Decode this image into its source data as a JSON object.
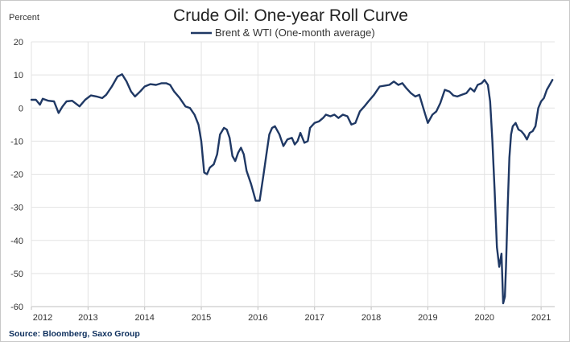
{
  "chart_data": {
    "type": "line",
    "title": "Crude Oil: One-year Roll Curve",
    "ylabel": "Percent",
    "xlabel": "",
    "ylim": [
      -60,
      20
    ],
    "yticks": [
      20,
      10,
      0,
      -10,
      -20,
      -30,
      -40,
      -50,
      -60
    ],
    "xticks": [
      "2012",
      "2013",
      "2014",
      "2015",
      "2016",
      "2017",
      "2018",
      "2019",
      "2020",
      "2021"
    ],
    "grid": true,
    "legend": "top-center",
    "source": "Source: Bloomberg, Saxo Group",
    "series": [
      {
        "name": "Brent & WTI (One-month average)",
        "color": "#1f3864",
        "x": [
          2012.0,
          2012.08,
          2012.15,
          2012.2,
          2012.3,
          2012.4,
          2012.48,
          2012.55,
          2012.62,
          2012.72,
          2012.85,
          2012.95,
          2013.05,
          2013.15,
          2013.25,
          2013.32,
          2013.42,
          2013.52,
          2013.6,
          2013.68,
          2013.76,
          2013.83,
          2013.92,
          2014.0,
          2014.1,
          2014.2,
          2014.3,
          2014.38,
          2014.45,
          2014.52,
          2014.62,
          2014.72,
          2014.8,
          2014.88,
          2014.95,
          2015.0,
          2015.05,
          2015.1,
          2015.15,
          2015.22,
          2015.28,
          2015.33,
          2015.4,
          2015.45,
          2015.5,
          2015.55,
          2015.6,
          2015.65,
          2015.7,
          2015.75,
          2015.8,
          2015.88,
          2015.96,
          2016.03,
          2016.1,
          2016.15,
          2016.2,
          2016.25,
          2016.3,
          2016.38,
          2016.45,
          2016.52,
          2016.6,
          2016.65,
          2016.7,
          2016.75,
          2016.82,
          2016.88,
          2016.92,
          2017.0,
          2017.08,
          2017.15,
          2017.2,
          2017.28,
          2017.35,
          2017.42,
          2017.5,
          2017.58,
          2017.65,
          2017.72,
          2017.8,
          2017.88,
          2017.95,
          2018.05,
          2018.15,
          2018.25,
          2018.32,
          2018.4,
          2018.48,
          2018.55,
          2018.62,
          2018.7,
          2018.78,
          2018.85,
          2018.92,
          2019.0,
          2019.08,
          2019.15,
          2019.22,
          2019.3,
          2019.38,
          2019.45,
          2019.52,
          2019.6,
          2019.68,
          2019.75,
          2019.82,
          2019.88,
          2019.95,
          2020.0,
          2020.06,
          2020.1,
          2020.14,
          2020.18,
          2020.22,
          2020.26,
          2020.3,
          2020.33,
          2020.36,
          2020.38,
          2020.41,
          2020.44,
          2020.47,
          2020.5,
          2020.55,
          2020.6,
          2020.65,
          2020.7,
          2020.75,
          2020.8,
          2020.85,
          2020.9,
          2020.95,
          2021.0,
          2021.05,
          2021.1,
          2021.15,
          2021.2
        ],
        "y": [
          2.5,
          2.5,
          1.0,
          2.8,
          2.2,
          2.0,
          -1.5,
          0.5,
          2.0,
          2.2,
          0.5,
          2.5,
          3.8,
          3.5,
          3.0,
          4.0,
          6.5,
          9.5,
          10.2,
          8.0,
          5.0,
          3.5,
          5.0,
          6.5,
          7.2,
          7.0,
          7.5,
          7.5,
          7.0,
          5.0,
          3.0,
          0.5,
          0.0,
          -2.0,
          -5.0,
          -10.0,
          -19.5,
          -20.0,
          -18.0,
          -17.0,
          -14.0,
          -8.0,
          -6.0,
          -6.5,
          -9.0,
          -14.5,
          -16.0,
          -13.5,
          -12.0,
          -14.0,
          -19.0,
          -23.0,
          -28.0,
          -28.0,
          -20.0,
          -14.0,
          -8.0,
          -6.0,
          -5.5,
          -8.0,
          -11.5,
          -9.5,
          -9.0,
          -11.0,
          -10.0,
          -7.5,
          -10.5,
          -10.0,
          -6.0,
          -4.5,
          -4.0,
          -3.0,
          -2.0,
          -2.5,
          -2.0,
          -3.0,
          -2.0,
          -2.5,
          -5.0,
          -4.5,
          -1.0,
          0.5,
          2.0,
          4.0,
          6.5,
          6.8,
          7.0,
          8.0,
          7.0,
          7.5,
          6.0,
          4.5,
          3.5,
          4.0,
          0.0,
          -4.5,
          -2.0,
          -1.0,
          1.5,
          5.5,
          5.0,
          3.8,
          3.5,
          4.0,
          4.5,
          6.0,
          5.0,
          7.0,
          7.5,
          8.5,
          7.0,
          2.0,
          -10.0,
          -25.0,
          -42.0,
          -48.0,
          -44.0,
          -59.0,
          -57.0,
          -48.0,
          -30.0,
          -15.0,
          -8.0,
          -5.5,
          -4.5,
          -6.5,
          -7.0,
          -8.0,
          -9.5,
          -7.5,
          -7.0,
          -5.5,
          0.0,
          2.0,
          3.0,
          5.5,
          7.0,
          8.5
        ]
      }
    ]
  }
}
